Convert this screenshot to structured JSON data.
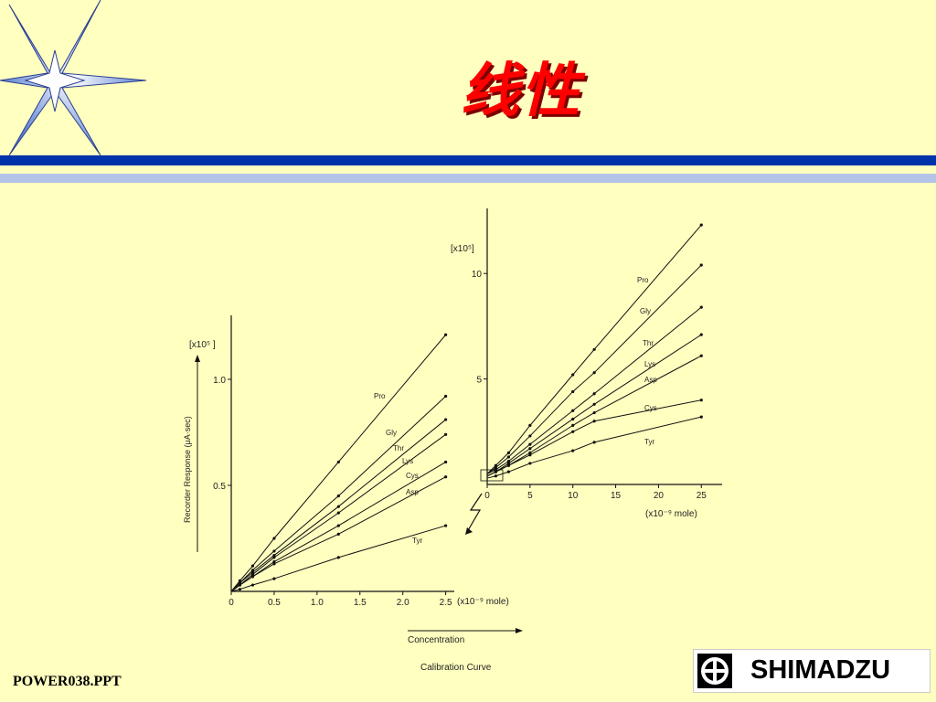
{
  "slide": {
    "title": "线性",
    "footer": "POWER038.PPT",
    "logo_text": "SHIMADZU",
    "colors": {
      "background": "#ffffc0",
      "title": "#ff0000",
      "band_dark": "#0033aa",
      "band_light": "#b3c4e8"
    },
    "icons": [
      "star-burst-icon",
      "shimadzu-logo-icon"
    ]
  },
  "chart_data": [
    {
      "type": "line",
      "scale_label": "[x10⁵ ]",
      "ylabel": "Recorder Response (μA·sec)",
      "xlabel": "Concentration",
      "caption": "Calibration Curve",
      "x_unit_label": "(x10⁻⁹ mole)",
      "x_ticks": [
        "0",
        "0.5",
        "1.0",
        "1.5",
        "2.0",
        "2.5"
      ],
      "x_tick_values": [
        0,
        5,
        10,
        15,
        20,
        25
      ],
      "y_ticks": [
        "0.5",
        "1.0"
      ],
      "y_tick_values": [
        0.5,
        1.0
      ],
      "xlim": [
        0,
        26
      ],
      "ylim": [
        0,
        1.28
      ],
      "grid": false,
      "series": [
        {
          "name": "Pro",
          "x": [
            0,
            1,
            2.5,
            5,
            12.5,
            25
          ],
          "y": [
            0,
            0.05,
            0.12,
            0.25,
            0.61,
            1.21
          ]
        },
        {
          "name": "Gly",
          "x": [
            0,
            1,
            2.5,
            5,
            12.5,
            25
          ],
          "y": [
            0,
            0.04,
            0.1,
            0.19,
            0.45,
            0.92
          ]
        },
        {
          "name": "Thr",
          "x": [
            0,
            1,
            2.5,
            5,
            12.5,
            25
          ],
          "y": [
            0,
            0.04,
            0.09,
            0.17,
            0.4,
            0.81
          ]
        },
        {
          "name": "Lys",
          "x": [
            0,
            1,
            2.5,
            5,
            12.5,
            25
          ],
          "y": [
            0,
            0.03,
            0.08,
            0.16,
            0.37,
            0.74
          ]
        },
        {
          "name": "Cys",
          "x": [
            0,
            1,
            2.5,
            5,
            12.5,
            25
          ],
          "y": [
            0,
            0.03,
            0.07,
            0.14,
            0.31,
            0.61
          ]
        },
        {
          "name": "Asp",
          "x": [
            0,
            1,
            2.5,
            5,
            12.5,
            25
          ],
          "y": [
            0,
            0.03,
            0.07,
            0.13,
            0.27,
            0.54
          ]
        },
        {
          "name": "Tyr",
          "x": [
            0,
            1,
            2.5,
            5,
            12.5,
            25
          ],
          "y": [
            0,
            0.01,
            0.03,
            0.06,
            0.16,
            0.31
          ]
        }
      ],
      "label_positions": {
        "Pro": [
          409,
          436
        ],
        "Gly": [
          422,
          476
        ],
        "Thr": [
          430,
          493
        ],
        "Lys": [
          440,
          507
        ],
        "Cys": [
          444,
          523
        ],
        "Asp": [
          444,
          541
        ],
        "Tyr": [
          451,
          594
        ]
      }
    },
    {
      "type": "line",
      "scale_label": "[x10⁵]",
      "x_unit_label": "(x10⁻⁹ mole)",
      "x_ticks": [
        "0",
        "5",
        "10",
        "15",
        "20",
        "25"
      ],
      "x_tick_values": [
        0,
        5,
        10,
        15,
        20,
        25
      ],
      "y_ticks": [
        "5",
        "10"
      ],
      "y_tick_values": [
        5,
        10
      ],
      "xlim": [
        0,
        27
      ],
      "ylim": [
        0,
        13
      ],
      "grid": false,
      "series": [
        {
          "name": "Pro",
          "x": [
            0,
            1,
            2.5,
            5,
            10,
            12.5,
            25
          ],
          "y": [
            0.5,
            0.9,
            1.5,
            2.8,
            5.2,
            6.4,
            12.3
          ]
        },
        {
          "name": "Gly",
          "x": [
            0,
            1,
            2.5,
            5,
            10,
            12.5,
            25
          ],
          "y": [
            0.5,
            0.8,
            1.3,
            2.3,
            4.4,
            5.3,
            10.4
          ]
        },
        {
          "name": "Thr",
          "x": [
            0,
            1,
            2.5,
            5,
            10,
            12.5,
            25
          ],
          "y": [
            0.5,
            0.7,
            1.1,
            1.9,
            3.5,
            4.3,
            8.4
          ]
        },
        {
          "name": "Lys",
          "x": [
            0,
            1,
            2.5,
            5,
            10,
            12.5,
            25
          ],
          "y": [
            0.4,
            0.6,
            1.0,
            1.7,
            3.1,
            3.8,
            7.1
          ]
        },
        {
          "name": "Asp",
          "x": [
            0,
            1,
            2.5,
            5,
            10,
            12.5,
            25
          ],
          "y": [
            0.4,
            0.6,
            0.9,
            1.5,
            2.8,
            3.4,
            6.1
          ]
        },
        {
          "name": "Cys",
          "x": [
            0,
            1,
            2.5,
            5,
            10,
            12.5,
            25
          ],
          "y": [
            0.4,
            0.6,
            0.9,
            1.4,
            2.5,
            3.0,
            4.0
          ]
        },
        {
          "name": "Tyr",
          "x": [
            0,
            1,
            2.5,
            5,
            10,
            12.5,
            25
          ],
          "y": [
            0.3,
            0.4,
            0.6,
            1.0,
            1.6,
            2.0,
            3.2
          ]
        }
      ],
      "label_positions": {
        "Pro": [
          697,
          309
        ],
        "Gly": [
          700,
          343
        ],
        "Thr": [
          703,
          378
        ],
        "Lys": [
          705,
          401
        ],
        "Asp": [
          705,
          418
        ],
        "Cys": [
          705,
          449
        ],
        "Tyr": [
          705,
          486
        ]
      }
    }
  ]
}
